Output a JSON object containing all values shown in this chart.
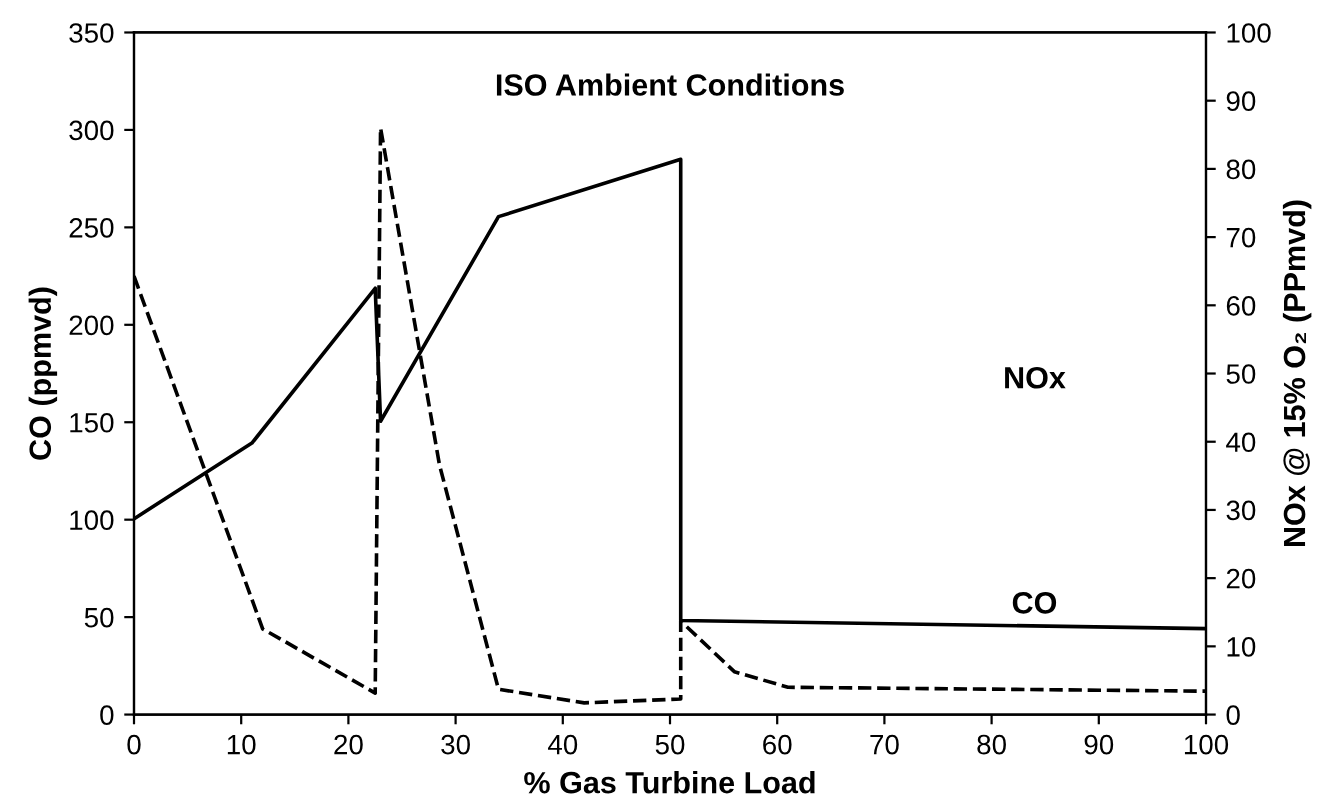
{
  "chart_data": {
    "type": "line",
    "title": "ISO Ambient Conditions",
    "xlabel": "% Gas Turbine Load",
    "ylabel": "CO (ppmvd)",
    "y2label": "NOx @ 15% O₂ (PPmvd)",
    "xlim": [
      0,
      100
    ],
    "xticks": [
      0,
      10,
      20,
      30,
      40,
      50,
      60,
      70,
      80,
      90,
      100
    ],
    "ylim": [
      0,
      350
    ],
    "yticks": [
      0,
      50,
      100,
      150,
      200,
      250,
      300,
      350
    ],
    "y2lim": [
      0,
      100
    ],
    "y2ticks": [
      0,
      10,
      20,
      30,
      40,
      50,
      60,
      70,
      80,
      90,
      100
    ],
    "grid": false,
    "legend": false,
    "marker": "none",
    "series": [
      {
        "color": "#000000",
        "axis": "y2",
        "line_style": "solid",
        "x": [
          0,
          11,
          22.5,
          23,
          34,
          51,
          51,
          100
        ],
        "values": [
          28.7,
          39.8,
          62.5,
          43,
          73,
          81.4,
          13.8,
          12.6
        ]
      },
      {
        "color": "#000000",
        "axis": "y",
        "line_style": "dashed",
        "x": [
          0,
          12,
          22.5,
          23,
          28.5,
          34,
          42,
          51,
          51,
          56,
          61,
          100
        ],
        "values": [
          225,
          44,
          11,
          301,
          128,
          13,
          6,
          8,
          48,
          22,
          14,
          12
        ]
      }
    ],
    "annotations": [
      "NOx",
      "CO"
    ]
  }
}
